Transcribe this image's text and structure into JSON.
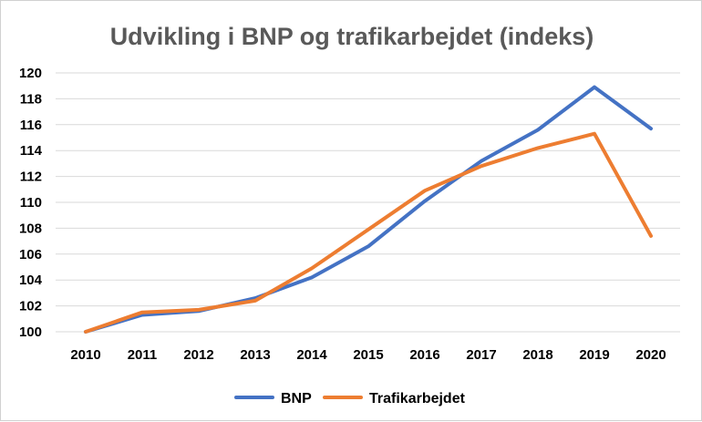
{
  "chart_data": {
    "type": "line",
    "title": "Udvikling i BNP og trafikarbejdet (indeks)",
    "xlabel": "",
    "ylabel": "",
    "categories": [
      "2010",
      "2011",
      "2012",
      "2013",
      "2014",
      "2015",
      "2016",
      "2017",
      "2018",
      "2019",
      "2020"
    ],
    "ylim": [
      100,
      120
    ],
    "yticks": [
      "100",
      "102",
      "104",
      "106",
      "108",
      "110",
      "112",
      "114",
      "116",
      "118",
      "120"
    ],
    "grid": true,
    "legend_position": "bottom",
    "series": [
      {
        "name": "BNP",
        "color": "#4472C4",
        "values": [
          100,
          101.3,
          101.6,
          102.6,
          104.2,
          106.6,
          110.1,
          113.2,
          115.6,
          118.9,
          115.7
        ]
      },
      {
        "name": "Trafikarbejdet",
        "color": "#ED7D31",
        "values": [
          100,
          101.5,
          101.7,
          102.4,
          104.9,
          107.9,
          110.9,
          112.8,
          114.2,
          115.3,
          107.4
        ]
      }
    ]
  }
}
